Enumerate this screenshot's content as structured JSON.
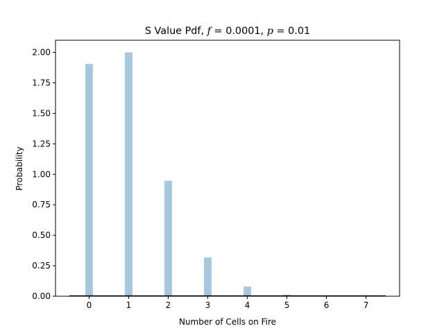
{
  "chart_data": {
    "type": "bar",
    "title_prefix": "S Value Pdf, ",
    "title_f_var": "f",
    "title_f_value": " = 0.0001, ",
    "title_p_var": "p",
    "title_p_value": " = 0.01",
    "xlabel": "Number of Cells on Fire",
    "ylabel": "Probability",
    "x": [
      0,
      1,
      2,
      3,
      4,
      5,
      6,
      7
    ],
    "values": [
      1.905,
      2.0,
      0.948,
      0.318,
      0.08,
      0.012,
      0.002,
      0.0
    ],
    "xlim": [
      -0.85,
      7.85
    ],
    "ylim": [
      0,
      2.1
    ],
    "xticks": [
      "0",
      "1",
      "2",
      "3",
      "4",
      "5",
      "6",
      "7"
    ],
    "yticks": [
      "0.00",
      "0.25",
      "0.50",
      "0.75",
      "1.00",
      "1.25",
      "1.50",
      "1.75",
      "2.00"
    ],
    "ytick_values": [
      0,
      0.25,
      0.5,
      0.75,
      1.0,
      1.25,
      1.5,
      1.75,
      2.0
    ],
    "bar_color": "#a6c8df",
    "density_line": {
      "x_start": -0.5,
      "x_end": 7.5,
      "color": "#000000"
    },
    "grid": false,
    "legend": "none"
  }
}
